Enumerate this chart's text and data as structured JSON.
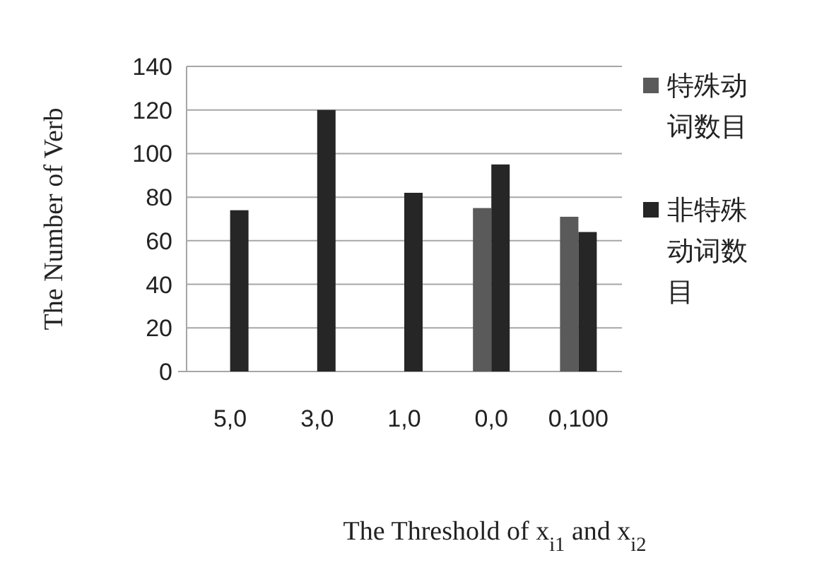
{
  "chart_data": {
    "type": "bar",
    "xlabel": "The Threshold of x$_{i1}$ and x$_{i2}$",
    "ylabel": "The Number of Verb",
    "categories": [
      "5,0",
      "3,0",
      "1,0",
      "0,0",
      "0,100"
    ],
    "series": [
      {
        "name": "特殊动词数目",
        "color": "#5a5a5a",
        "values": [
          null,
          null,
          null,
          75,
          71
        ]
      },
      {
        "name": "非特殊动词数目",
        "color": "#262626",
        "values": [
          74,
          120,
          82,
          95,
          64
        ]
      }
    ],
    "ylim": [
      0,
      140
    ],
    "yticks": [
      0,
      20,
      40,
      60,
      80,
      100,
      120,
      140
    ],
    "grid": "y",
    "legend": "right"
  }
}
